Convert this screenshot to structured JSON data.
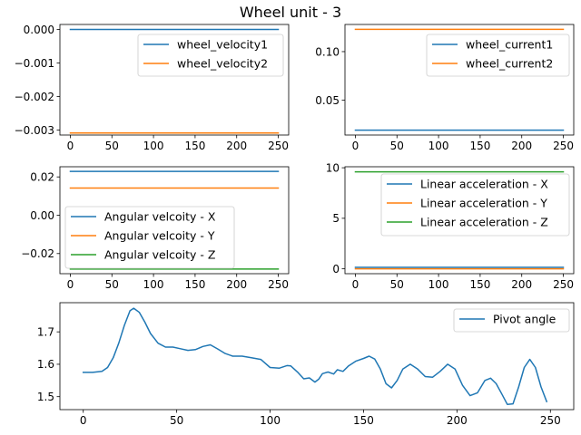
{
  "figure": {
    "title": "Wheel unit - 3"
  },
  "colors": {
    "c0": "#1f77b4",
    "c1": "#ff7f0e",
    "c2": "#2ca02c"
  },
  "chart_data": [
    {
      "type": "line",
      "title": "",
      "xlim": [
        -12.5,
        262.5
      ],
      "ylim": [
        -0.00315,
        0.00015
      ],
      "xticks": [
        0,
        50,
        100,
        150,
        200,
        250
      ],
      "yticks": [
        0.0,
        -0.001,
        -0.002,
        -0.003
      ],
      "ytick_labels": [
        "0.000",
        "−0.001",
        "−0.002",
        "−0.003"
      ],
      "legend_position": "upper-right",
      "series": [
        {
          "name": "wheel_velocity1",
          "color": "#1f77b4",
          "x": [
            0,
            250
          ],
          "y": [
            0.0,
            0.0
          ]
        },
        {
          "name": "wheel_velocity2",
          "color": "#ff7f0e",
          "x": [
            0,
            250
          ],
          "y": [
            -0.00309,
            -0.00309
          ]
        }
      ]
    },
    {
      "type": "line",
      "title": "",
      "xlim": [
        -12.5,
        262.5
      ],
      "ylim": [
        0.014,
        0.128
      ],
      "xticks": [
        0,
        50,
        100,
        150,
        200,
        250
      ],
      "yticks": [
        0.05,
        0.1
      ],
      "ytick_labels": [
        "0.05",
        "0.10"
      ],
      "legend_position": "upper-right",
      "series": [
        {
          "name": "wheel_current1",
          "color": "#1f77b4",
          "x": [
            0,
            250
          ],
          "y": [
            0.019,
            0.019
          ]
        },
        {
          "name": "wheel_current2",
          "color": "#ff7f0e",
          "x": [
            0,
            250
          ],
          "y": [
            0.123,
            0.123
          ]
        }
      ]
    },
    {
      "type": "line",
      "title": "",
      "xlim": [
        -12.5,
        262.5
      ],
      "ylim": [
        -0.0305,
        0.0253
      ],
      "xticks": [
        0,
        50,
        100,
        150,
        200,
        250
      ],
      "yticks": [
        0.02,
        0.0,
        -0.02
      ],
      "ytick_labels": [
        "0.02",
        "0.00",
        "−0.02"
      ],
      "legend_position": "lower-left",
      "series": [
        {
          "name": "Angular velcoity - X",
          "color": "#1f77b4",
          "x": [
            0,
            250
          ],
          "y": [
            0.0229,
            0.0229
          ]
        },
        {
          "name": "Angular velcoity - Y",
          "color": "#ff7f0e",
          "x": [
            0,
            250
          ],
          "y": [
            0.0142,
            0.0142
          ]
        },
        {
          "name": "Angular velcoity - Z",
          "color": "#2ca02c",
          "x": [
            0,
            250
          ],
          "y": [
            -0.0281,
            -0.0281
          ]
        }
      ]
    },
    {
      "type": "line",
      "title": "",
      "xlim": [
        -12.5,
        262.5
      ],
      "ylim": [
        -0.48,
        10.1
      ],
      "xticks": [
        0,
        50,
        100,
        150,
        200,
        250
      ],
      "yticks": [
        0,
        5,
        10
      ],
      "ytick_labels": [
        "0",
        "5",
        "10"
      ],
      "legend_position": "upper-right",
      "series": [
        {
          "name": "Linear acceleration - X",
          "color": "#1f77b4",
          "x": [
            0,
            250
          ],
          "y": [
            0.15,
            0.15
          ]
        },
        {
          "name": "Linear acceleration - Y",
          "color": "#ff7f0e",
          "x": [
            0,
            250
          ],
          "y": [
            0.0,
            0.0
          ]
        },
        {
          "name": "Linear acceleration - Z",
          "color": "#2ca02c",
          "x": [
            0,
            250
          ],
          "y": [
            9.6,
            9.6
          ]
        }
      ]
    },
    {
      "type": "line",
      "title": "",
      "xlim": [
        -12.5,
        262.5
      ],
      "ylim": [
        1.46,
        1.79
      ],
      "xticks": [
        0,
        50,
        100,
        150,
        200,
        250
      ],
      "yticks": [
        1.5,
        1.6,
        1.7
      ],
      "ytick_labels": [
        "1.5",
        "1.6",
        "1.7"
      ],
      "legend_position": "upper-right",
      "series": [
        {
          "name": "Pivot angle",
          "color": "#1f77b4",
          "x": [
            0,
            5,
            10,
            13,
            16,
            19,
            22,
            25,
            27,
            30,
            33,
            36,
            40,
            44,
            48,
            52,
            56,
            60,
            64,
            68,
            72,
            76,
            80,
            85,
            90,
            95,
            100,
            105,
            109,
            111,
            115,
            118,
            121,
            124,
            126,
            128,
            131,
            134,
            136,
            139,
            142,
            146,
            150,
            153,
            156,
            159,
            162,
            165,
            168,
            171,
            175,
            179,
            183,
            187,
            191,
            195,
            199,
            203,
            207,
            211,
            215,
            218,
            221,
            224,
            227,
            230,
            233,
            236,
            239,
            242,
            245,
            248
          ],
          "y": [
            1.575,
            1.575,
            1.578,
            1.59,
            1.62,
            1.665,
            1.72,
            1.765,
            1.773,
            1.76,
            1.73,
            1.695,
            1.665,
            1.653,
            1.653,
            1.648,
            1.643,
            1.645,
            1.655,
            1.66,
            1.647,
            1.633,
            1.625,
            1.625,
            1.62,
            1.615,
            1.59,
            1.588,
            1.596,
            1.595,
            1.574,
            1.555,
            1.558,
            1.545,
            1.554,
            1.571,
            1.576,
            1.57,
            1.583,
            1.578,
            1.595,
            1.61,
            1.618,
            1.625,
            1.616,
            1.585,
            1.54,
            1.527,
            1.55,
            1.585,
            1.6,
            1.585,
            1.562,
            1.56,
            1.578,
            1.6,
            1.585,
            1.535,
            1.503,
            1.512,
            1.55,
            1.557,
            1.54,
            1.508,
            1.476,
            1.478,
            1.53,
            1.59,
            1.615,
            1.59,
            1.53,
            1.485
          ]
        }
      ]
    }
  ]
}
